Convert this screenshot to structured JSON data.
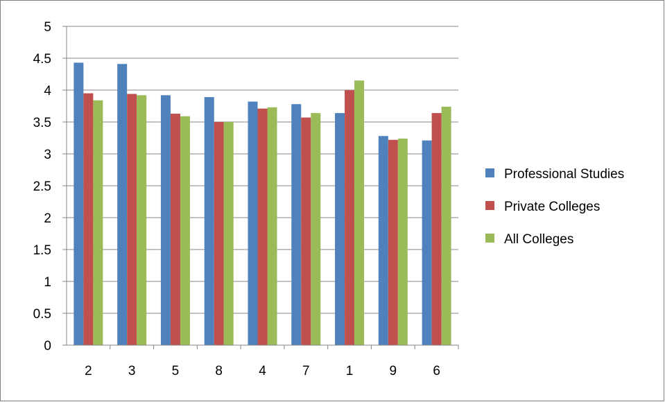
{
  "chart_data": {
    "type": "bar",
    "categories": [
      "2",
      "3",
      "5",
      "8",
      "4",
      "7",
      "1",
      "9",
      "6"
    ],
    "series": [
      {
        "name": "Professional Studies",
        "color": "#4f81bd",
        "values": [
          4.43,
          4.41,
          3.92,
          3.89,
          3.82,
          3.78,
          3.64,
          3.28,
          3.21
        ]
      },
      {
        "name": "Private Colleges",
        "color": "#c0504d",
        "values": [
          3.95,
          3.94,
          3.63,
          3.5,
          3.71,
          3.57,
          4.0,
          3.22,
          3.64
        ]
      },
      {
        "name": "All Colleges",
        "color": "#9bbb59",
        "values": [
          3.84,
          3.92,
          3.59,
          3.5,
          3.73,
          3.64,
          4.15,
          3.24,
          3.74
        ]
      }
    ],
    "ylim": [
      0,
      5
    ],
    "yticks": [
      "0",
      "0.5",
      "1",
      "1.5",
      "2",
      "2.5",
      "3",
      "3.5",
      "4",
      "4.5",
      "5"
    ],
    "grid": true,
    "legend": "right",
    "title": "",
    "xlabel": "",
    "ylabel": ""
  }
}
